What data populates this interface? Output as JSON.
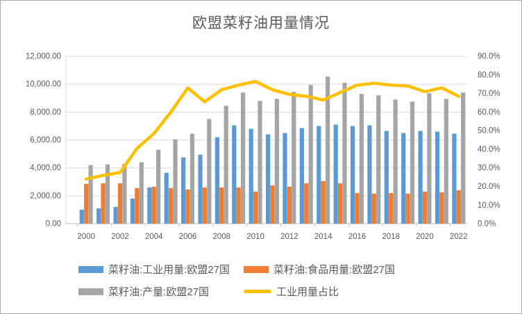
{
  "title": "欧盟菜籽油用量情况",
  "chart_data": {
    "type": "combo-bar-line",
    "categories": [
      2000,
      2001,
      2002,
      2003,
      2004,
      2005,
      2006,
      2007,
      2008,
      2009,
      2010,
      2011,
      2012,
      2013,
      2014,
      2015,
      2016,
      2017,
      2018,
      2019,
      2020,
      2021,
      2022
    ],
    "x_tick_labels": [
      "2000",
      "2002",
      "2004",
      "2006",
      "2008",
      "2010",
      "2012",
      "2014",
      "2016",
      "2018",
      "2020",
      "2022"
    ],
    "bar_series": [
      {
        "name": "菜籽油:工业用量:欧盟27国",
        "color": "#5B9BD5",
        "axis": "left",
        "values": [
          1000,
          1100,
          1200,
          1800,
          2600,
          3650,
          4750,
          4950,
          6200,
          7050,
          6800,
          6400,
          6500,
          6850,
          7000,
          7100,
          7000,
          7050,
          6650,
          6500,
          6650,
          6600,
          6450
        ]
      },
      {
        "name": "菜籽油:食品用量:欧盟27国",
        "color": "#ED7D31",
        "axis": "left",
        "values": [
          2850,
          2900,
          2900,
          2550,
          2650,
          2550,
          2450,
          2600,
          2600,
          2600,
          2300,
          2750,
          2650,
          2900,
          3050,
          2900,
          2200,
          2150,
          2200,
          2150,
          2300,
          2250,
          2400
        ]
      },
      {
        "name": "菜籽油:产量:欧盟27国",
        "color": "#A5A5A5",
        "axis": "left",
        "values": [
          4200,
          4250,
          4300,
          4400,
          5300,
          6050,
          6450,
          7500,
          8450,
          9400,
          8800,
          8950,
          9450,
          9950,
          10550,
          10100,
          9300,
          9200,
          8900,
          8750,
          9350,
          8950,
          9400
        ]
      }
    ],
    "line_series": {
      "name": "工业用量占比",
      "color": "#FFC000",
      "axis": "right",
      "values_pct": [
        24,
        26,
        27.5,
        40.5,
        48.5,
        60,
        73,
        65.5,
        72,
        74.5,
        76.5,
        72,
        69.5,
        68.5,
        66.5,
        70.5,
        74.5,
        75.5,
        74.5,
        74,
        71,
        73,
        68.5
      ]
    },
    "left_axis": {
      "min": 0,
      "max": 12000,
      "labels": [
        "12,000.00",
        "10,000.00",
        "8,000.00",
        "6,000.00",
        "4,000.00",
        "2,000.00",
        "0.00"
      ]
    },
    "right_axis": {
      "min_pct": 0,
      "max_pct": 90,
      "labels": [
        "90.0%",
        "80.0%",
        "70.0%",
        "60.0%",
        "50.0%",
        "40.0%",
        "30.0%",
        "20.0%",
        "10.0%",
        "0.0%"
      ]
    },
    "grid": "horizontal-on",
    "legend_position": "bottom",
    "colors": {
      "grid": "#D9D9D9",
      "axis_line": "#BFBFBF",
      "tick_text": "#595959",
      "title_text": "#595959"
    }
  }
}
